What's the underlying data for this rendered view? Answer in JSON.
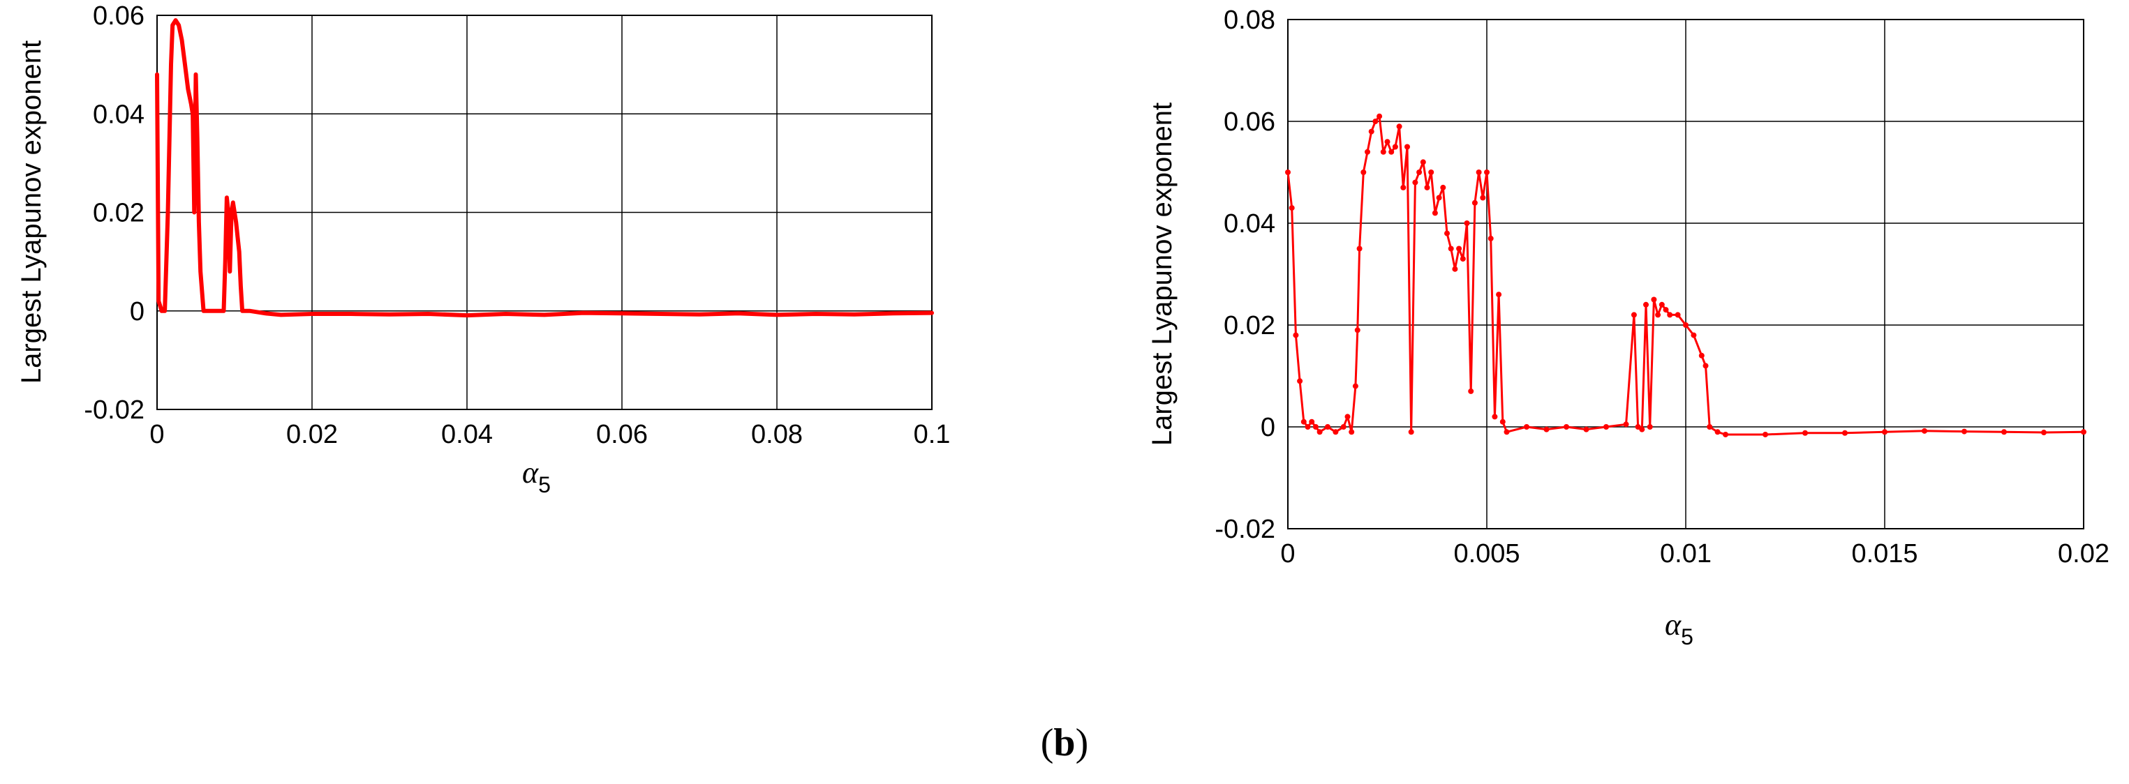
{
  "panel_label": {
    "open": "(",
    "letter": "b",
    "close": ")"
  },
  "chart_data": [
    {
      "type": "line",
      "xlabel": "α",
      "xlabel_subscript": "5",
      "ylabel": "Largest Lyapunov exponent",
      "xlim": [
        0,
        0.1
      ],
      "ylim": [
        -0.02,
        0.06
      ],
      "xticks": [
        0,
        0.02,
        0.04,
        0.06,
        0.08,
        0.1
      ],
      "xtick_labels": [
        "0",
        "0.02",
        "0.04",
        "0.06",
        "0.08",
        "0.1"
      ],
      "yticks": [
        -0.02,
        0,
        0.02,
        0.04,
        0.06
      ],
      "ytick_labels": [
        "-0.02",
        "0",
        "0.02",
        "0.04",
        "0.06"
      ],
      "grid": true,
      "color": "#ff0000",
      "markers": false,
      "series": [
        {
          "x": [
            0,
            0.0002,
            0.0006,
            0.001,
            0.0014,
            0.0018,
            0.002,
            0.0024,
            0.0028,
            0.0032,
            0.0036,
            0.004,
            0.0044,
            0.0046,
            0.0048,
            0.005,
            0.0052,
            0.0054,
            0.0056,
            0.006,
            0.0066,
            0.007,
            0.0076,
            0.008,
            0.0086,
            0.0088,
            0.009,
            0.0092,
            0.0094,
            0.0096,
            0.0098,
            0.01,
            0.0102,
            0.0104,
            0.0106,
            0.0108,
            0.011,
            0.012,
            0.014,
            0.016,
            0.02,
            0.025,
            0.03,
            0.035,
            0.04,
            0.045,
            0.05,
            0.055,
            0.06,
            0.065,
            0.07,
            0.075,
            0.08,
            0.085,
            0.09,
            0.095,
            0.1
          ],
          "y": [
            0.048,
            0.002,
            0,
            0,
            0.02,
            0.05,
            0.058,
            0.059,
            0.058,
            0.055,
            0.05,
            0.045,
            0.042,
            0.04,
            0.02,
            0.048,
            0.035,
            0.018,
            0.008,
            0,
            0,
            0,
            0,
            0,
            0,
            0.01,
            0.023,
            0.02,
            0.008,
            0.02,
            0.022,
            0.02,
            0.018,
            0.015,
            0.012,
            0.005,
            0,
            0,
            -0.0005,
            -0.0008,
            -0.0006,
            -0.0006,
            -0.0007,
            -0.0006,
            -0.0009,
            -0.0006,
            -0.0008,
            -0.0004,
            -0.0005,
            -0.0006,
            -0.0007,
            -0.0005,
            -0.0008,
            -0.0006,
            -0.0007,
            -0.0005,
            -0.0004
          ]
        }
      ]
    },
    {
      "type": "line",
      "xlabel": "α",
      "xlabel_subscript": "5",
      "ylabel": "Largest Lyapunov exponent",
      "xlim": [
        0,
        0.02
      ],
      "ylim": [
        -0.02,
        0.08
      ],
      "xticks": [
        0,
        0.005,
        0.01,
        0.015,
        0.02
      ],
      "xtick_labels": [
        "0",
        "0.005",
        "0.01",
        "0.015",
        "0.02"
      ],
      "yticks": [
        -0.02,
        0,
        0.02,
        0.04,
        0.06,
        0.08
      ],
      "ytick_labels": [
        "-0.02",
        "0",
        "0.02",
        "0.04",
        "0.06",
        "0.08"
      ],
      "grid": true,
      "color": "#ff0000",
      "markers": true,
      "series": [
        {
          "x": [
            0,
            0.0001,
            0.0002,
            0.0003,
            0.0004,
            0.0005,
            0.0006,
            0.0007,
            0.0008,
            0.001,
            0.0012,
            0.0014,
            0.0015,
            0.0016,
            0.0017,
            0.00175,
            0.0018,
            0.0019,
            0.002,
            0.0021,
            0.0022,
            0.0023,
            0.0024,
            0.0025,
            0.0026,
            0.0027,
            0.0028,
            0.0029,
            0.003,
            0.0031,
            0.0032,
            0.0033,
            0.0034,
            0.0035,
            0.0036,
            0.0037,
            0.0038,
            0.0039,
            0.004,
            0.0041,
            0.0042,
            0.0043,
            0.0044,
            0.0045,
            0.0046,
            0.0047,
            0.0048,
            0.0049,
            0.005,
            0.0051,
            0.0052,
            0.0053,
            0.0054,
            0.0055,
            0.006,
            0.0065,
            0.007,
            0.0075,
            0.008,
            0.0085,
            0.0087,
            0.0088,
            0.0089,
            0.009,
            0.0091,
            0.0092,
            0.0093,
            0.0094,
            0.0095,
            0.0096,
            0.0098,
            0.01,
            0.0102,
            0.0104,
            0.0105,
            0.0106,
            0.0108,
            0.011,
            0.012,
            0.013,
            0.014,
            0.015,
            0.016,
            0.017,
            0.018,
            0.019,
            0.02
          ],
          "y": [
            0.05,
            0.043,
            0.018,
            0.009,
            0.001,
            0,
            0.001,
            0,
            -0.001,
            0,
            -0.001,
            0,
            0.002,
            -0.001,
            0.008,
            0.019,
            0.035,
            0.05,
            0.054,
            0.058,
            0.06,
            0.061,
            0.054,
            0.056,
            0.054,
            0.055,
            0.059,
            0.047,
            0.055,
            -0.001,
            0.048,
            0.05,
            0.052,
            0.047,
            0.05,
            0.042,
            0.045,
            0.047,
            0.038,
            0.035,
            0.031,
            0.035,
            0.033,
            0.04,
            0.007,
            0.044,
            0.05,
            0.045,
            0.05,
            0.037,
            0.002,
            0.026,
            0.001,
            -0.001,
            0,
            -0.0005,
            0,
            -0.0005,
            0,
            0.0005,
            0.022,
            0,
            -0.0005,
            0.024,
            0,
            0.025,
            0.022,
            0.024,
            0.023,
            0.022,
            0.022,
            0.02,
            0.018,
            0.014,
            0.012,
            0,
            -0.001,
            -0.0015,
            -0.0015,
            -0.0012,
            -0.0012,
            -0.001,
            -0.0008,
            -0.0009,
            -0.001,
            -0.0011,
            -0.001
          ]
        }
      ]
    }
  ]
}
